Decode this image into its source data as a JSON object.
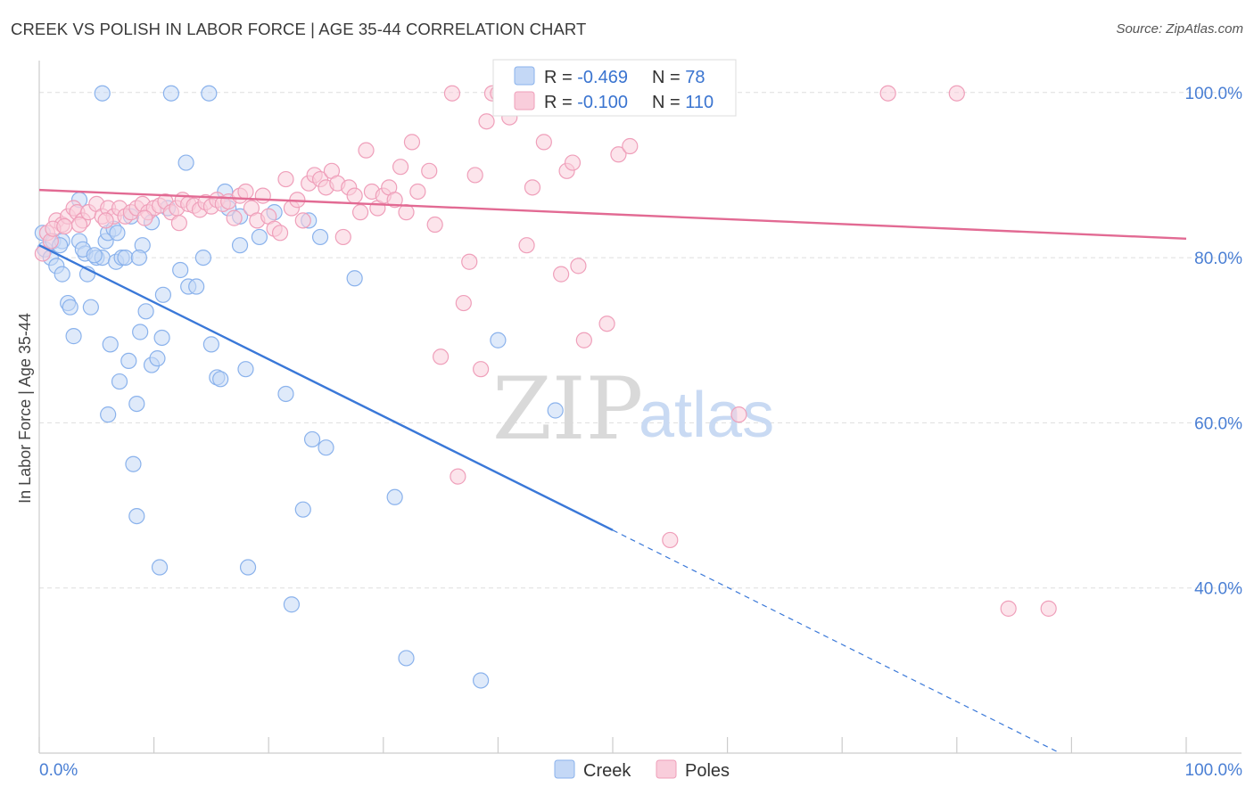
{
  "header": {
    "title": "CREEK VS POLISH IN LABOR FORCE | AGE 35-44 CORRELATION CHART",
    "source": "Source: ZipAtlas.com"
  },
  "watermark": {
    "zip": "ZIP",
    "atlas": "atlas"
  },
  "legend": {
    "rows": [
      {
        "r_label": "R = ",
        "r_value": "-0.469",
        "n_label": "N = ",
        "n_value": "78",
        "color": "#6f9de8",
        "fill": "#b7cff3"
      },
      {
        "r_label": "R = ",
        "r_value": "-0.100",
        "n_label": "N = ",
        "n_value": "110",
        "color": "#ea8fae",
        "fill": "#f8c3d3"
      }
    ]
  },
  "bottom_legend": [
    {
      "label": "Creek",
      "color": "#6f9de8",
      "fill": "#b7cff3"
    },
    {
      "label": "Poles",
      "color": "#ea8fae",
      "fill": "#f8c3d3"
    }
  ],
  "chart_data": {
    "type": "scatter",
    "title": "CREEK VS POLISH IN LABOR FORCE | AGE 35-44 CORRELATION CHART",
    "xlabel": "",
    "ylabel": "In Labor Force | Age 35-44",
    "xlim": [
      0,
      100
    ],
    "ylim": [
      20,
      103
    ],
    "x_tick_labels": [
      "0.0%",
      "100.0%"
    ],
    "y_ticks": [
      40,
      60,
      80,
      100
    ],
    "y_tick_labels": [
      "40.0%",
      "60.0%",
      "80.0%",
      "100.0%"
    ],
    "grid": true,
    "series": [
      {
        "name": "Creek",
        "color": "#3a78d8",
        "point_color": "#8ab2ec",
        "point_fill": "#c4d8f6",
        "trend": {
          "x0": 0,
          "y0": 81.5,
          "x1": 50,
          "y1": 47.0,
          "dashed_to": [
            89,
            20.0
          ]
        },
        "points": [
          [
            0.3,
            83.0
          ],
          [
            0.5,
            81.0
          ],
          [
            1.0,
            80.0
          ],
          [
            1.2,
            82.0
          ],
          [
            1.5,
            79.0
          ],
          [
            2.0,
            78.0
          ],
          [
            2.5,
            74.5
          ],
          [
            2.7,
            74.0
          ],
          [
            3.0,
            70.5
          ],
          [
            3.5,
            87.0
          ],
          [
            3.5,
            82.0
          ],
          [
            4.0,
            80.5
          ],
          [
            4.2,
            78.0
          ],
          [
            4.5,
            74.0
          ],
          [
            5.0,
            80.0
          ],
          [
            5.5,
            99.9
          ],
          [
            5.5,
            80.0
          ],
          [
            5.8,
            82.0
          ],
          [
            6.0,
            83.0
          ],
          [
            6.0,
            61.0
          ],
          [
            6.2,
            69.5
          ],
          [
            6.5,
            83.5
          ],
          [
            6.7,
            79.5
          ],
          [
            7.0,
            65.0
          ],
          [
            7.2,
            80.0
          ],
          [
            7.5,
            80.0
          ],
          [
            7.8,
            67.5
          ],
          [
            8.0,
            85.0
          ],
          [
            8.2,
            55.0
          ],
          [
            8.5,
            62.3
          ],
          [
            8.5,
            48.7
          ],
          [
            8.8,
            71.0
          ],
          [
            9.0,
            81.5
          ],
          [
            9.3,
            73.5
          ],
          [
            9.8,
            84.3
          ],
          [
            9.8,
            67.0
          ],
          [
            10.3,
            67.8
          ],
          [
            10.5,
            42.5
          ],
          [
            10.7,
            70.3
          ],
          [
            10.8,
            75.5
          ],
          [
            11.2,
            86.0
          ],
          [
            11.5,
            99.9
          ],
          [
            12.3,
            78.5
          ],
          [
            12.8,
            91.5
          ],
          [
            13.0,
            76.5
          ],
          [
            13.7,
            76.5
          ],
          [
            14.3,
            80.0
          ],
          [
            14.8,
            99.9
          ],
          [
            15.0,
            69.5
          ],
          [
            15.5,
            65.5
          ],
          [
            15.8,
            65.3
          ],
          [
            16.2,
            88.0
          ],
          [
            16.5,
            86.0
          ],
          [
            17.5,
            85.0
          ],
          [
            17.5,
            81.5
          ],
          [
            18.0,
            66.5
          ],
          [
            18.2,
            42.5
          ],
          [
            19.2,
            82.5
          ],
          [
            20.5,
            85.5
          ],
          [
            21.5,
            63.5
          ],
          [
            22.0,
            38.0
          ],
          [
            23.0,
            49.5
          ],
          [
            23.5,
            84.5
          ],
          [
            23.8,
            58.0
          ],
          [
            24.5,
            82.5
          ],
          [
            25.0,
            57.0
          ],
          [
            27.5,
            77.5
          ],
          [
            31.0,
            51.0
          ],
          [
            32.0,
            31.5
          ],
          [
            38.5,
            28.8
          ],
          [
            40.0,
            70.0
          ],
          [
            45.0,
            61.5
          ],
          [
            2.0,
            82.0
          ],
          [
            3.8,
            81.0
          ],
          [
            6.8,
            83.0
          ],
          [
            8.7,
            80.0
          ],
          [
            1.8,
            81.5
          ],
          [
            4.8,
            80.3
          ]
        ]
      },
      {
        "name": "Poles",
        "color": "#e26a93",
        "point_color": "#ef9fba",
        "point_fill": "#f9cddb",
        "trend": {
          "x0": 0,
          "y0": 88.2,
          "x1": 100,
          "y1": 82.3
        },
        "points": [
          [
            0.3,
            80.5
          ],
          [
            0.7,
            83.0
          ],
          [
            1.0,
            82.0
          ],
          [
            1.5,
            84.5
          ],
          [
            2.0,
            84.0
          ],
          [
            2.5,
            85.0
          ],
          [
            3.0,
            86.0
          ],
          [
            3.3,
            85.5
          ],
          [
            3.8,
            84.5
          ],
          [
            4.3,
            85.5
          ],
          [
            5.0,
            86.5
          ],
          [
            5.5,
            85.0
          ],
          [
            6.0,
            86.0
          ],
          [
            6.5,
            85.0
          ],
          [
            7.0,
            86.0
          ],
          [
            7.5,
            85.0
          ],
          [
            8.0,
            85.5
          ],
          [
            8.5,
            86.0
          ],
          [
            9.0,
            86.5
          ],
          [
            9.5,
            85.5
          ],
          [
            10.0,
            86.0
          ],
          [
            10.5,
            86.3
          ],
          [
            11.0,
            86.8
          ],
          [
            11.5,
            85.5
          ],
          [
            12.0,
            86.0
          ],
          [
            12.5,
            87.0
          ],
          [
            13.0,
            86.5
          ],
          [
            13.5,
            86.3
          ],
          [
            14.0,
            85.8
          ],
          [
            14.5,
            86.7
          ],
          [
            15.0,
            86.2
          ],
          [
            15.5,
            87.0
          ],
          [
            16.0,
            86.5
          ],
          [
            16.5,
            86.8
          ],
          [
            17.0,
            84.8
          ],
          [
            17.5,
            87.5
          ],
          [
            18.0,
            88.0
          ],
          [
            18.5,
            86.0
          ],
          [
            19.0,
            84.5
          ],
          [
            19.5,
            87.5
          ],
          [
            20.0,
            85.0
          ],
          [
            20.5,
            83.5
          ],
          [
            21.0,
            83.0
          ],
          [
            21.5,
            89.5
          ],
          [
            22.0,
            86.0
          ],
          [
            22.5,
            87.0
          ],
          [
            23.0,
            84.5
          ],
          [
            23.5,
            89.0
          ],
          [
            24.0,
            90.0
          ],
          [
            24.5,
            89.5
          ],
          [
            25.0,
            88.5
          ],
          [
            25.5,
            90.5
          ],
          [
            26.0,
            89.0
          ],
          [
            26.5,
            82.5
          ],
          [
            27.0,
            88.5
          ],
          [
            27.5,
            87.5
          ],
          [
            28.0,
            85.5
          ],
          [
            28.5,
            93.0
          ],
          [
            29.0,
            88.0
          ],
          [
            29.5,
            86.0
          ],
          [
            30.0,
            87.5
          ],
          [
            30.5,
            88.5
          ],
          [
            31.0,
            87.0
          ],
          [
            31.5,
            91.0
          ],
          [
            32.0,
            85.5
          ],
          [
            32.5,
            94.0
          ],
          [
            33.0,
            88.0
          ],
          [
            34.0,
            90.5
          ],
          [
            34.5,
            84.0
          ],
          [
            35.0,
            68.0
          ],
          [
            36.0,
            99.9
          ],
          [
            36.5,
            53.5
          ],
          [
            37.0,
            74.5
          ],
          [
            37.5,
            79.5
          ],
          [
            38.0,
            90.0
          ],
          [
            38.5,
            66.5
          ],
          [
            39.0,
            96.5
          ],
          [
            39.5,
            99.9
          ],
          [
            40.0,
            99.9
          ],
          [
            41.0,
            97.0
          ],
          [
            42.0,
            99.9
          ],
          [
            42.5,
            81.5
          ],
          [
            43.0,
            88.5
          ],
          [
            44.0,
            94.0
          ],
          [
            45.0,
            99.9
          ],
          [
            45.5,
            78.0
          ],
          [
            46.0,
            90.5
          ],
          [
            46.5,
            91.5
          ],
          [
            47.0,
            79.0
          ],
          [
            47.5,
            70.0
          ],
          [
            49.0,
            99.9
          ],
          [
            49.5,
            72.0
          ],
          [
            50.5,
            92.5
          ],
          [
            51.0,
            99.9
          ],
          [
            51.5,
            93.5
          ],
          [
            53.0,
            99.9
          ],
          [
            55.0,
            45.8
          ],
          [
            56.0,
            99.9
          ],
          [
            60.0,
            99.9
          ],
          [
            61.0,
            61.0
          ],
          [
            74.0,
            99.9
          ],
          [
            80.0,
            99.9
          ],
          [
            84.5,
            37.5
          ],
          [
            88.0,
            37.5
          ],
          [
            3.5,
            84.0
          ],
          [
            5.8,
            84.5
          ],
          [
            9.2,
            84.8
          ],
          [
            12.2,
            84.2
          ],
          [
            1.2,
            83.5
          ],
          [
            2.2,
            83.8
          ]
        ]
      }
    ]
  }
}
